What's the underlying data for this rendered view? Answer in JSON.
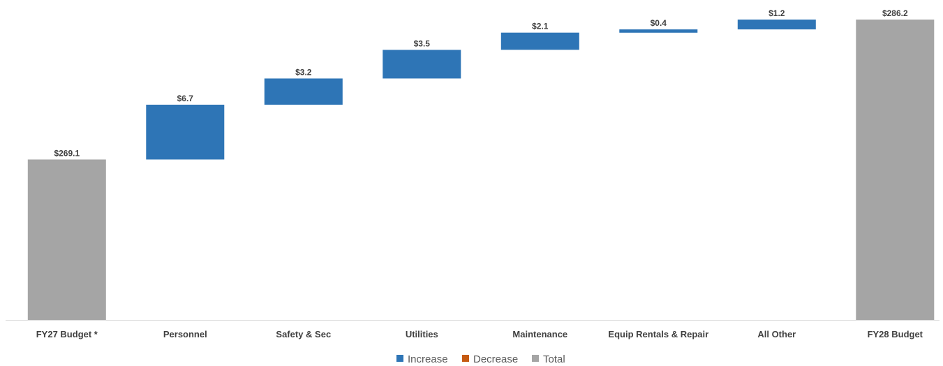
{
  "chart_data": {
    "type": "bar",
    "subtype": "waterfall",
    "categories": [
      "FY27 Budget *",
      "Personnel",
      "Safety & Sec",
      "Utilities",
      "Maintenance",
      "Equip Rentals & Repair",
      "All Other",
      "FY28 Budget"
    ],
    "values": [
      269.1,
      6.7,
      3.2,
      3.5,
      2.1,
      0.4,
      1.2,
      286.2
    ],
    "kinds": [
      "total",
      "increase",
      "increase",
      "increase",
      "increase",
      "increase",
      "increase",
      "total"
    ],
    "data_labels": [
      "$269.1",
      "$6.7",
      "$3.2",
      "$3.5",
      "$2.1",
      "$0.4",
      "$1.2",
      "$286.2"
    ],
    "title": "",
    "xlabel": "",
    "ylabel": "",
    "ylim": [
      249.5,
      286.2
    ],
    "grid": false,
    "legend_position": "bottom",
    "legend": [
      {
        "label": "Increase",
        "key": "increase"
      },
      {
        "label": "Decrease",
        "key": "decrease"
      },
      {
        "label": "Total",
        "key": "total"
      }
    ],
    "colors": {
      "increase": "#2E75B6",
      "decrease": "#C55A11",
      "total": "#A5A5A5"
    }
  }
}
